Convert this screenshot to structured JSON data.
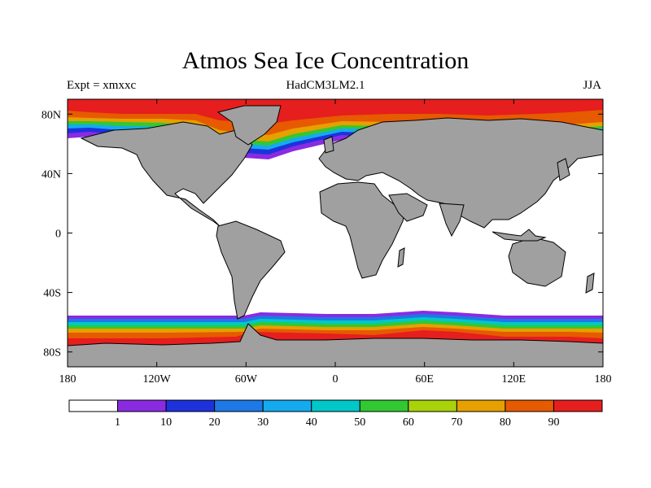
{
  "title": "Atmos Sea Ice Concentration",
  "subtitle_left": "Expt = xmxxc",
  "subtitle_center": "HadCM3LM2.1",
  "subtitle_right": "JJA",
  "map": {
    "projection": "cylindrical-equidistant",
    "lon_range": [
      -180,
      180
    ],
    "lat_range": [
      -90,
      90
    ],
    "lat_tick_labels": [
      "80N",
      "40N",
      "0",
      "40S",
      "80S"
    ],
    "lon_tick_labels": [
      "180",
      "120W",
      "60W",
      "0",
      "60E",
      "120E",
      "180"
    ],
    "land_color": "#a0a0a0",
    "ocean_color": "#ffffff"
  },
  "colorbar": {
    "colors": [
      "#ffffff",
      "#8a2be2",
      "#1e32dc",
      "#1e78e6",
      "#14aaf0",
      "#00c8c8",
      "#32c832",
      "#aad20a",
      "#e6a000",
      "#e65a00",
      "#e61e1e"
    ],
    "labels": [
      "1",
      "10",
      "20",
      "30",
      "40",
      "50",
      "60",
      "70",
      "80",
      "90"
    ]
  }
}
